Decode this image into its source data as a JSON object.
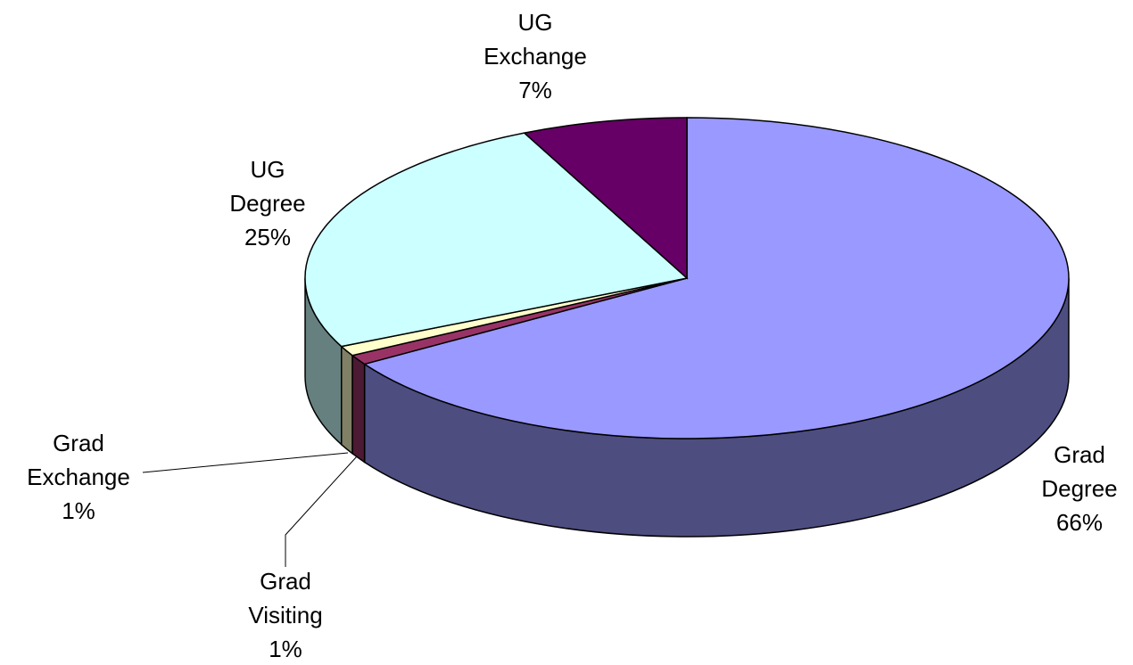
{
  "chart_data": {
    "type": "pie",
    "categories": [
      "Grad Degree",
      "Grad Visiting",
      "Grad Exchange",
      "UG Degree",
      "UG Exchange"
    ],
    "values": [
      66,
      1,
      1,
      25,
      7
    ],
    "value_labels": [
      "66%",
      "1%",
      "1%",
      "25%",
      "7%"
    ],
    "colors": [
      "#9999ff",
      "#993366",
      "#ffffcc",
      "#ccffff",
      "#660066"
    ],
    "three_d": true
  }
}
